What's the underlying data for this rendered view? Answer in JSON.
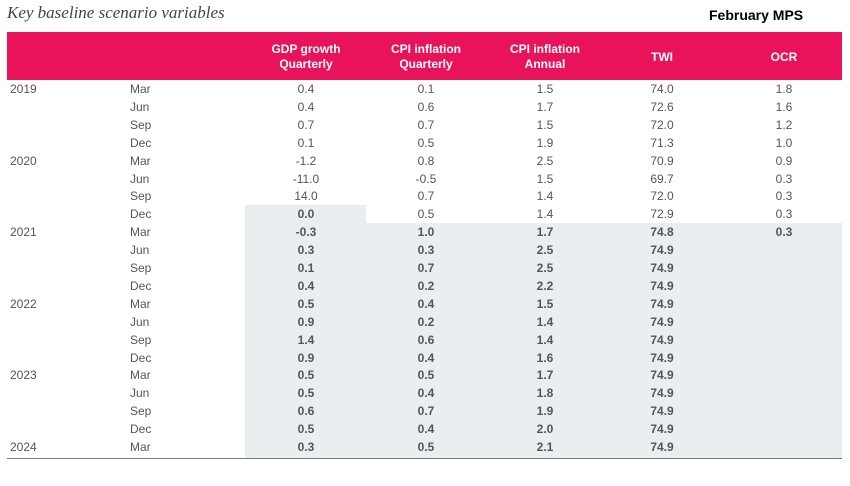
{
  "title": "Key baseline scenario variables",
  "subtitle": "February MPS",
  "headers": [
    {
      "key": "gdp",
      "label": "GDP growth\nQuarterly"
    },
    {
      "key": "cpi_q",
      "label": "CPI inflation\nQuarterly"
    },
    {
      "key": "cpi_a",
      "label": "CPI inflation\nAnnual"
    },
    {
      "key": "twi",
      "label": "TWI"
    },
    {
      "key": "ocr",
      "label": "OCR"
    }
  ],
  "rows": [
    {
      "year": "2019",
      "quarter": "Mar",
      "gdp": "0.4",
      "cpi_q": "0.1",
      "cpi_a": "1.5",
      "twi": "74.0",
      "ocr": "1.8"
    },
    {
      "year": "",
      "quarter": "Jun",
      "gdp": "0.4",
      "cpi_q": "0.6",
      "cpi_a": "1.7",
      "twi": "72.6",
      "ocr": "1.6"
    },
    {
      "year": "",
      "quarter": "Sep",
      "gdp": "0.7",
      "cpi_q": "0.7",
      "cpi_a": "1.5",
      "twi": "72.0",
      "ocr": "1.2"
    },
    {
      "year": "",
      "quarter": "Dec",
      "gdp": "0.1",
      "cpi_q": "0.5",
      "cpi_a": "1.9",
      "twi": "71.3",
      "ocr": "1.0"
    },
    {
      "year": "2020",
      "quarter": "Mar",
      "gdp": "-1.2",
      "cpi_q": "0.8",
      "cpi_a": "2.5",
      "twi": "70.9",
      "ocr": "0.9"
    },
    {
      "year": "",
      "quarter": "Jun",
      "gdp": "-11.0",
      "cpi_q": "-0.5",
      "cpi_a": "1.5",
      "twi": "69.7",
      "ocr": "0.3"
    },
    {
      "year": "",
      "quarter": "Sep",
      "gdp": "14.0",
      "cpi_q": "0.7",
      "cpi_a": "1.4",
      "twi": "72.0",
      "ocr": "0.3"
    },
    {
      "year": "",
      "quarter": "Dec",
      "gdp": "0.0",
      "cpi_q": "0.5",
      "cpi_a": "1.4",
      "twi": "72.9",
      "ocr": "0.3"
    },
    {
      "year": "2021",
      "quarter": "Mar",
      "gdp": "-0.3",
      "cpi_q": "1.0",
      "cpi_a": "1.7",
      "twi": "74.8",
      "ocr": "0.3"
    },
    {
      "year": "",
      "quarter": "Jun",
      "gdp": "0.3",
      "cpi_q": "0.3",
      "cpi_a": "2.5",
      "twi": "74.9",
      "ocr": ""
    },
    {
      "year": "",
      "quarter": "Sep",
      "gdp": "0.1",
      "cpi_q": "0.7",
      "cpi_a": "2.5",
      "twi": "74.9",
      "ocr": ""
    },
    {
      "year": "",
      "quarter": "Dec",
      "gdp": "0.4",
      "cpi_q": "0.2",
      "cpi_a": "2.2",
      "twi": "74.9",
      "ocr": ""
    },
    {
      "year": "2022",
      "quarter": "Mar",
      "gdp": "0.5",
      "cpi_q": "0.4",
      "cpi_a": "1.5",
      "twi": "74.9",
      "ocr": ""
    },
    {
      "year": "",
      "quarter": "Jun",
      "gdp": "0.9",
      "cpi_q": "0.2",
      "cpi_a": "1.4",
      "twi": "74.9",
      "ocr": ""
    },
    {
      "year": "",
      "quarter": "Sep",
      "gdp": "1.4",
      "cpi_q": "0.6",
      "cpi_a": "1.4",
      "twi": "74.9",
      "ocr": ""
    },
    {
      "year": "",
      "quarter": "Dec",
      "gdp": "0.9",
      "cpi_q": "0.4",
      "cpi_a": "1.6",
      "twi": "74.9",
      "ocr": ""
    },
    {
      "year": "2023",
      "quarter": "Mar",
      "gdp": "0.5",
      "cpi_q": "0.5",
      "cpi_a": "1.7",
      "twi": "74.9",
      "ocr": ""
    },
    {
      "year": "",
      "quarter": "Jun",
      "gdp": "0.5",
      "cpi_q": "0.4",
      "cpi_a": "1.8",
      "twi": "74.9",
      "ocr": ""
    },
    {
      "year": "",
      "quarter": "Sep",
      "gdp": "0.6",
      "cpi_q": "0.7",
      "cpi_a": "1.9",
      "twi": "74.9",
      "ocr": ""
    },
    {
      "year": "",
      "quarter": "Dec",
      "gdp": "0.5",
      "cpi_q": "0.4",
      "cpi_a": "2.0",
      "twi": "74.9",
      "ocr": ""
    },
    {
      "year": "2024",
      "quarter": "Mar",
      "gdp": "0.3",
      "cpi_q": "0.5",
      "cpi_a": "2.1",
      "twi": "74.9",
      "ocr": ""
    }
  ],
  "projection_start": {
    "gdp": "2020 Dec",
    "cpi_q": "2021 Mar",
    "cpi_a": "2021 Mar",
    "twi": "2021 Mar",
    "ocr": "2021 Mar"
  }
}
